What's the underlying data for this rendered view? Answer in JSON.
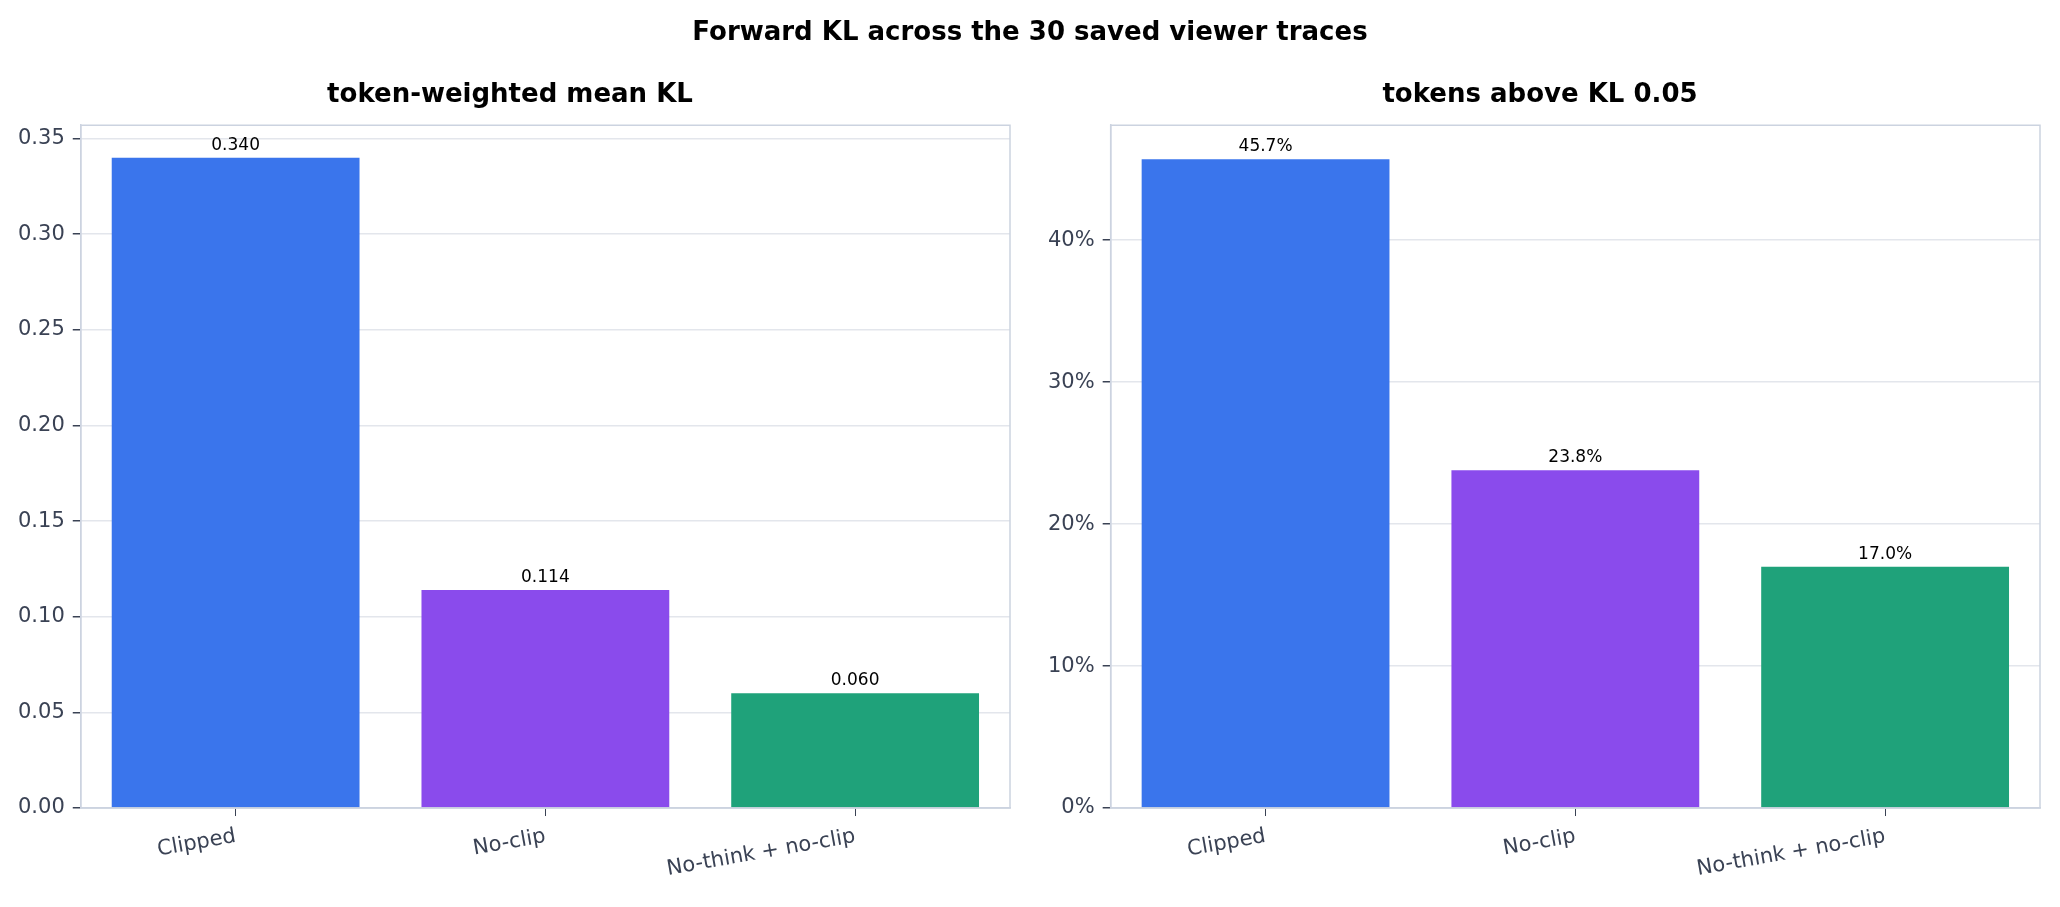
{
  "chart_data": [
    {
      "type": "other",
      "title": "Forward KL across the 30 saved viewer traces"
    },
    {
      "type": "bar",
      "title": "token-weighted mean KL",
      "categories": [
        "Clipped",
        "No-clip",
        "No-think + no-clip"
      ],
      "values": [
        0.34,
        0.114,
        0.06
      ],
      "colors": [
        "#3a75ec",
        "#8a4bec",
        "#1fa27a"
      ],
      "value_labels": [
        "0.340",
        "0.114",
        "0.060"
      ],
      "ylim": [
        0,
        0.357
      ],
      "yticks": [
        {
          "value": 0,
          "label": "0.00"
        },
        {
          "value": 0.05,
          "label": "0.05"
        },
        {
          "value": 0.1,
          "label": "0.10"
        },
        {
          "value": 0.15,
          "label": "0.15"
        },
        {
          "value": 0.2,
          "label": "0.20"
        },
        {
          "value": 0.25,
          "label": "0.25"
        },
        {
          "value": 0.3,
          "label": "0.30"
        },
        {
          "value": 0.35,
          "label": "0.35"
        }
      ],
      "grid": "y",
      "legend": false
    },
    {
      "type": "bar",
      "title": "tokens above KL 0.05",
      "categories": [
        "Clipped",
        "No-clip",
        "No-think + no-clip"
      ],
      "values": [
        45.7,
        23.8,
        17.0
      ],
      "colors": [
        "#3a75ec",
        "#8a4bec",
        "#1fa27a"
      ],
      "value_labels": [
        "45.7%",
        "23.8%",
        "17.0%"
      ],
      "ylim": [
        0,
        48.1
      ],
      "yticks": [
        {
          "value": 0,
          "label": "0%"
        },
        {
          "value": 10,
          "label": "10%"
        },
        {
          "value": 20,
          "label": "20%"
        },
        {
          "value": 30,
          "label": "30%"
        },
        {
          "value": 40,
          "label": "40%"
        }
      ],
      "grid": "y",
      "legend": false
    }
  ]
}
